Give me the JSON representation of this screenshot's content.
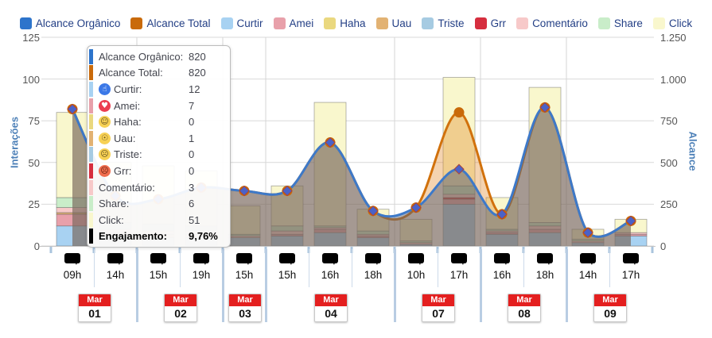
{
  "legend": {
    "items": [
      {
        "label": "Alcance Orgânico",
        "color": "#2d74cb"
      },
      {
        "label": "Alcance Total",
        "color": "#c96a0a"
      },
      {
        "label": "Curtir",
        "color": "#a8d2f2"
      },
      {
        "label": "Amei",
        "color": "#e8a0aa"
      },
      {
        "label": "Haha",
        "color": "#ead87f"
      },
      {
        "label": "Uau",
        "color": "#e2b273"
      },
      {
        "label": "Triste",
        "color": "#a6cbe2"
      },
      {
        "label": "Grr",
        "color": "#d62e3e"
      },
      {
        "label": "Comentário",
        "color": "#f7c9c9"
      },
      {
        "label": "Share",
        "color": "#c9edc9"
      },
      {
        "label": "Click",
        "color": "#f9f7cd"
      }
    ]
  },
  "axes": {
    "left": {
      "title": "Interações",
      "ticks": [
        "0",
        "25",
        "50",
        "75",
        "100",
        "125"
      ],
      "max": 125
    },
    "right": {
      "title": "Alcance",
      "ticks": [
        "0",
        "250",
        "500",
        "750",
        "1.000",
        "1.250"
      ],
      "max": 1250
    }
  },
  "tooltip": {
    "rows": [
      {
        "name": "alcance-organico",
        "label": "Alcance Orgânico:",
        "value": "820",
        "color": "#2d74cb"
      },
      {
        "name": "alcance-total",
        "label": "Alcance Total:",
        "value": "820",
        "color": "#c96a0a"
      },
      {
        "name": "curtir",
        "label": "Curtir:",
        "value": "12",
        "color": "#a8d2f2",
        "icon": "like-icon",
        "icon_bg": "#3b78e7",
        "icon_fg": "#ffffff",
        "icon_glyph": "☝"
      },
      {
        "name": "amei",
        "label": "Amei:",
        "value": "7",
        "color": "#e8a0aa",
        "icon": "love-icon",
        "icon_bg": "#ec3e50",
        "icon_fg": "#ffffff",
        "icon_glyph": "♥"
      },
      {
        "name": "haha",
        "label": "Haha:",
        "value": "0",
        "color": "#ead87f",
        "icon": "haha-icon",
        "icon_bg": "#f7d154",
        "icon_fg": "#5c4a1f",
        "icon_glyph": "☺"
      },
      {
        "name": "uau",
        "label": "Uau:",
        "value": "1",
        "color": "#e2b273",
        "icon": "wow-icon",
        "icon_bg": "#f7d154",
        "icon_fg": "#5c4a1f",
        "icon_glyph": "☉"
      },
      {
        "name": "triste",
        "label": "Triste:",
        "value": "0",
        "color": "#a6cbe2",
        "icon": "sad-icon",
        "icon_bg": "#f7d154",
        "icon_fg": "#5c4a1f",
        "icon_glyph": "☹"
      },
      {
        "name": "grr",
        "label": "Grr:",
        "value": "0",
        "color": "#d62e3e",
        "icon": "angry-icon",
        "icon_bg": "#ef6c4d",
        "icon_fg": "#5a1a0a",
        "icon_glyph": "☹"
      },
      {
        "name": "comentario",
        "label": "Comentário:",
        "value": "3",
        "color": "#f7c9c9"
      },
      {
        "name": "share",
        "label": "Share:",
        "value": "6",
        "color": "#c9edc9"
      },
      {
        "name": "click",
        "label": "Click:",
        "value": "51",
        "color": "#f9f7cd"
      },
      {
        "name": "engajamento",
        "label": "Engajamento:",
        "value": "9,76%",
        "color": "#000000",
        "bold": true
      }
    ]
  },
  "xaxis": {
    "groups": [
      {
        "month": "Mar",
        "day": "01",
        "times": [
          "09h",
          "14h"
        ]
      },
      {
        "month": "Mar",
        "day": "02",
        "times": [
          "15h",
          "19h"
        ]
      },
      {
        "month": "Mar",
        "day": "03",
        "times": [
          "15h"
        ]
      },
      {
        "month": "Mar",
        "day": "04",
        "times": [
          "15h",
          "16h",
          "18h"
        ]
      },
      {
        "month": "Mar",
        "day": "07",
        "times": [
          "10h",
          "17h"
        ]
      },
      {
        "month": "Mar",
        "day": "08",
        "times": [
          "16h",
          "18h"
        ]
      },
      {
        "month": "Mar",
        "day": "09",
        "times": [
          "14h",
          "17h"
        ]
      }
    ]
  },
  "chart_data": {
    "type": "combo-stacked-bar-plus-lines",
    "x": [
      "Mar 01 09h",
      "Mar 01 14h",
      "Mar 02 15h",
      "Mar 02 19h",
      "Mar 03 15h",
      "Mar 04 15h",
      "Mar 04 16h",
      "Mar 04 18h",
      "Mar 07 10h",
      "Mar 07 17h",
      "Mar 08 16h",
      "Mar 08 18h",
      "Mar 09 14h",
      "Mar 09 17h"
    ],
    "left_axis": {
      "label": "Interações",
      "range": [
        0,
        125
      ],
      "grid": true
    },
    "right_axis": {
      "label": "Alcance",
      "range": [
        0,
        1250
      ]
    },
    "stack_categories": [
      "Curtir",
      "Amei",
      "Haha",
      "Uau",
      "Triste",
      "Grr",
      "Comentário",
      "Share",
      "Click"
    ],
    "stack_colors": [
      "#a8d2f2",
      "#e8a0aa",
      "#ead87f",
      "#e2b273",
      "#a6cbe2",
      "#d62e3e",
      "#f7c9c9",
      "#c9edc9",
      "#f9f7cd"
    ],
    "bars": [
      [
        12,
        7,
        0,
        1,
        0,
        0,
        3,
        6,
        51
      ],
      [
        6,
        2,
        0,
        0,
        0,
        0,
        2,
        4,
        36
      ],
      [
        5,
        2,
        0,
        0,
        0,
        0,
        2,
        4,
        35
      ],
      [
        5,
        2,
        0,
        0,
        0,
        0,
        2,
        3,
        33
      ],
      [
        5,
        0,
        0,
        0,
        0,
        0,
        1,
        1,
        17
      ],
      [
        6,
        1,
        0,
        0,
        0,
        0,
        2,
        3,
        24
      ],
      [
        8,
        2,
        0,
        0,
        0,
        0,
        1,
        1,
        74
      ],
      [
        5,
        1,
        0,
        0,
        0,
        0,
        1,
        2,
        13
      ],
      [
        1,
        0,
        0,
        0,
        0,
        0,
        1,
        1,
        13
      ],
      [
        25,
        3,
        0,
        0,
        0,
        1,
        2,
        5,
        65
      ],
      [
        7,
        1,
        0,
        0,
        0,
        0,
        1,
        1,
        19
      ],
      [
        8,
        2,
        0,
        0,
        0,
        0,
        2,
        2,
        81
      ],
      [
        2,
        0,
        0,
        0,
        0,
        0,
        1,
        1,
        6
      ],
      [
        6,
        1,
        0,
        0,
        0,
        0,
        1,
        0,
        8
      ]
    ],
    "series": [
      {
        "name": "Alcance Total",
        "axis": "right",
        "type": "line-area",
        "color": "#d1710c",
        "fill": "rgba(224,130,30,0.35)",
        "marker": "circle",
        "values": [
          820,
          300,
          280,
          350,
          330,
          330,
          620,
          210,
          230,
          800,
          190,
          830,
          80,
          150
        ]
      },
      {
        "name": "Alcance Orgânico",
        "axis": "right",
        "type": "line-area",
        "color": "#3d79c9",
        "fill": "rgba(85,95,115,0.5)",
        "marker": "diamond",
        "values": [
          820,
          300,
          280,
          350,
          330,
          330,
          620,
          210,
          230,
          460,
          190,
          830,
          80,
          150
        ]
      }
    ],
    "legend_position": "top"
  }
}
